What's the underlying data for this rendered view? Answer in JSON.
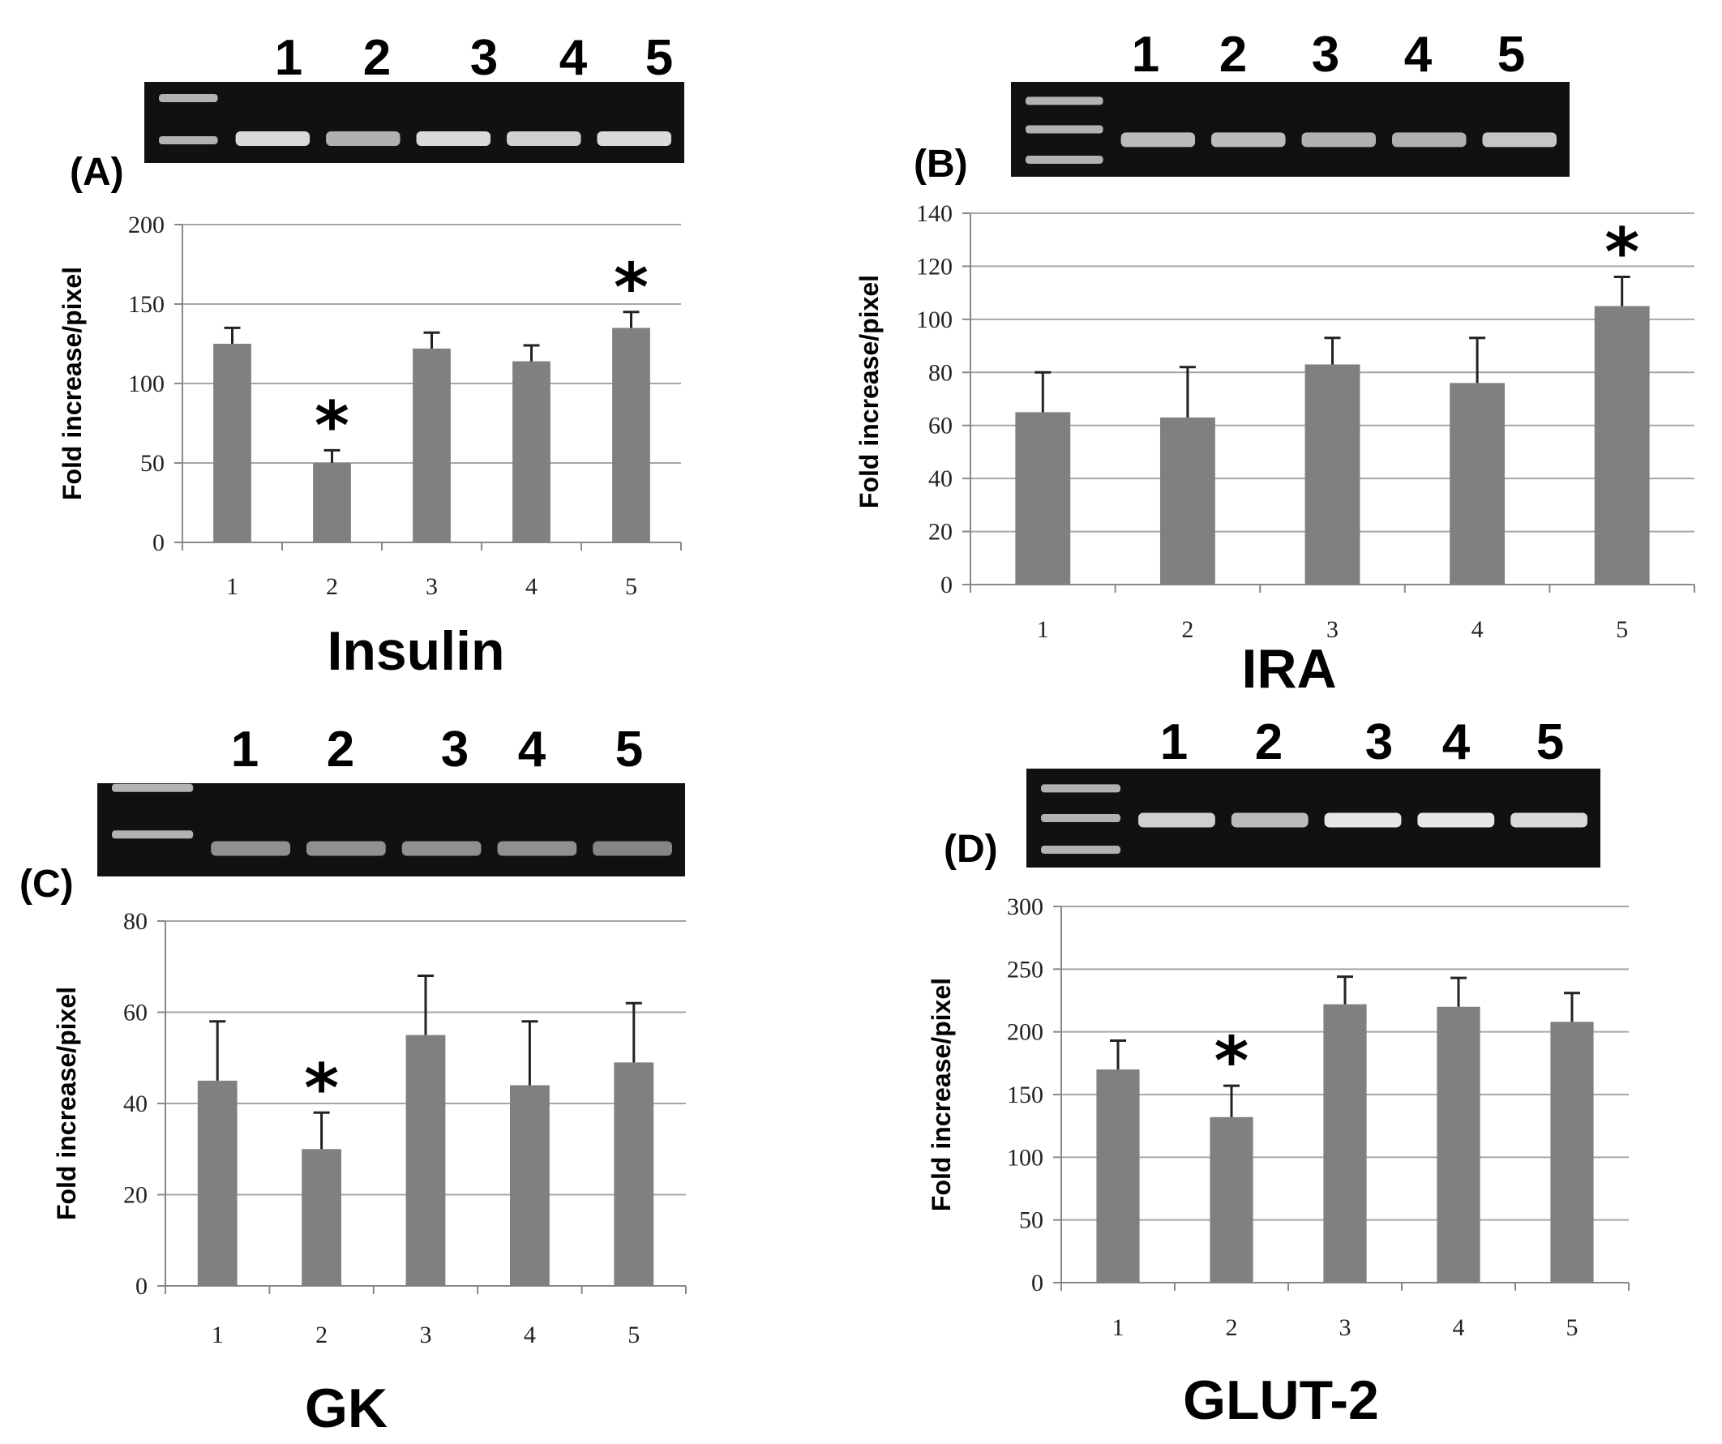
{
  "figure": {
    "y_axis_label": "Fold increase/pixel",
    "colors": {
      "bar": "#808080",
      "grid": "#a6a6a6",
      "gel_bg": "#111111",
      "band": "#e6e6e6"
    }
  },
  "chart_data": [
    {
      "panel": "(A)",
      "type": "bar",
      "title": "Insulin",
      "ylabel": "Fold increase/pixel",
      "categories": [
        "1",
        "2",
        "3",
        "4",
        "5"
      ],
      "values": [
        125,
        50,
        122,
        114,
        135
      ],
      "errors": [
        10,
        8,
        10,
        10,
        10
      ],
      "significant": [
        false,
        true,
        false,
        false,
        true
      ],
      "significance_marker": "*",
      "ylim": [
        0,
        200
      ],
      "yticks": [
        0,
        50,
        100,
        150,
        200
      ],
      "ytick_labels": [
        "0",
        "50",
        "100",
        "150",
        "200"
      ],
      "gel_lane_labels": [
        "1",
        "2",
        "3",
        "4",
        "5"
      ],
      "gel_band_intensity": [
        0.95,
        0.75,
        0.95,
        0.9,
        0.95
      ]
    },
    {
      "panel": "(B)",
      "type": "bar",
      "title": "IRA",
      "ylabel": "Fold increase/pixel",
      "categories": [
        "1",
        "2",
        "3",
        "4",
        "5"
      ],
      "values": [
        65,
        63,
        83,
        76,
        105
      ],
      "errors": [
        15,
        19,
        10,
        17,
        11
      ],
      "significant": [
        false,
        false,
        false,
        false,
        true
      ],
      "significance_marker": "*",
      "ylim": [
        0,
        140
      ],
      "yticks": [
        0,
        20,
        40,
        60,
        80,
        100,
        120,
        140
      ],
      "ytick_labels": [
        "0",
        "20",
        "40",
        "60",
        "80",
        "100",
        "120",
        "140"
      ],
      "gel_lane_labels": [
        "1",
        "2",
        "3",
        "4",
        "5"
      ],
      "gel_band_intensity": [
        0.8,
        0.8,
        0.75,
        0.75,
        0.85
      ]
    },
    {
      "panel": "(C)",
      "type": "bar",
      "title": "GK",
      "ylabel": "Fold increase/pixel",
      "categories": [
        "1",
        "2",
        "3",
        "4",
        "5"
      ],
      "values": [
        45,
        30,
        55,
        44,
        49
      ],
      "errors": [
        13,
        8,
        13,
        14,
        13
      ],
      "significant": [
        false,
        true,
        false,
        false,
        false
      ],
      "significance_marker": "*",
      "ylim": [
        0,
        80
      ],
      "yticks": [
        0,
        20,
        40,
        60,
        80
      ],
      "ytick_labels": [
        "0",
        "20",
        "40",
        "60",
        "80"
      ],
      "gel_lane_labels": [
        "1",
        "2",
        "3",
        "4",
        "5"
      ],
      "gel_band_intensity": [
        0.6,
        0.6,
        0.6,
        0.6,
        0.55
      ]
    },
    {
      "panel": "(D)",
      "type": "bar",
      "title": "GLUT-2",
      "ylabel": "Fold increase/pixel",
      "categories": [
        "1",
        "2",
        "3",
        "4",
        "5"
      ],
      "values": [
        170,
        132,
        222,
        220,
        208
      ],
      "errors": [
        23,
        25,
        22,
        23,
        23
      ],
      "significant": [
        false,
        true,
        false,
        false,
        false
      ],
      "significance_marker": "*",
      "ylim": [
        0,
        300
      ],
      "yticks": [
        0,
        50,
        100,
        150,
        200,
        250,
        300
      ],
      "ytick_labels": [
        "0",
        "50",
        "100",
        "150",
        "200",
        "250",
        "300"
      ],
      "gel_lane_labels": [
        "1",
        "2",
        "3",
        "4",
        "5"
      ],
      "gel_band_intensity": [
        0.9,
        0.8,
        1.0,
        1.0,
        0.95
      ]
    }
  ]
}
